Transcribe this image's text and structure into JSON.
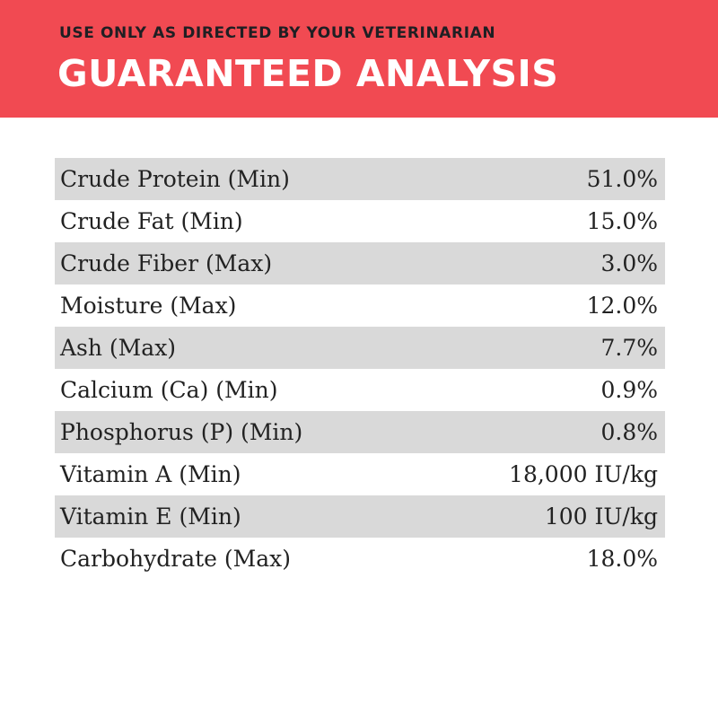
{
  "header": {
    "subtitle": "USE ONLY AS DIRECTED BY YOUR VETERINARIAN",
    "title": "GUARANTEED ANALYSIS",
    "background_color": "#f14a52"
  },
  "analysis": {
    "shade_color": "#d9d9d9",
    "rows": [
      {
        "label": "Crude Protein (Min)",
        "value": "51.0%"
      },
      {
        "label": "Crude Fat (Min)",
        "value": "15.0%"
      },
      {
        "label": "Crude Fiber (Max)",
        "value": "3.0%"
      },
      {
        "label": "Moisture (Max)",
        "value": "12.0%"
      },
      {
        "label": "Ash (Max)",
        "value": "7.7%"
      },
      {
        "label": "Calcium (Ca) (Min)",
        "value": "0.9%"
      },
      {
        "label": "Phosphorus (P) (Min)",
        "value": "0.8%"
      },
      {
        "label": "Vitamin A (Min)",
        "value": "18,000 IU/kg"
      },
      {
        "label": "Vitamin E (Min)",
        "value": "100 IU/kg"
      },
      {
        "label": "Carbohydrate (Max)",
        "value": "18.0%"
      }
    ]
  }
}
